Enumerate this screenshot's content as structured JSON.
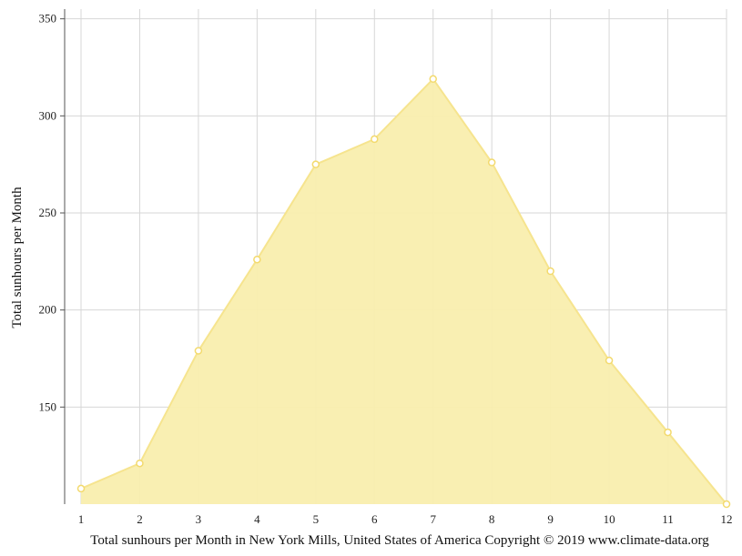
{
  "chart_data": {
    "type": "area",
    "caption": "Total sunhours per Month in New York Mills, United States of America Copyright © 2019 www.climate-data.org",
    "ylabel": "Total sunhours per Month",
    "xlabel": "",
    "x": [
      1,
      2,
      3,
      4,
      5,
      6,
      7,
      8,
      9,
      10,
      11,
      12
    ],
    "x_tick_labels": [
      "1",
      "2",
      "3",
      "4",
      "5",
      "6",
      "7",
      "8",
      "9",
      "10",
      "11",
      "12"
    ],
    "y_ticks": [
      150,
      200,
      250,
      300,
      350
    ],
    "y_tick_labels": [
      "150",
      "200",
      "250",
      "300",
      "350"
    ],
    "ylim": [
      100,
      355
    ],
    "grid": true,
    "colors": {
      "fill": "#f9eeae",
      "line": "#f6e48e",
      "marker_fill": "#ffffff",
      "marker_stroke": "#f3da6e",
      "grid": "#d7d7d7",
      "axis": "#555555"
    },
    "series": [
      {
        "values": [
          108,
          121,
          179,
          226,
          275,
          288,
          319,
          276,
          220,
          174,
          137,
          100
        ]
      }
    ]
  }
}
